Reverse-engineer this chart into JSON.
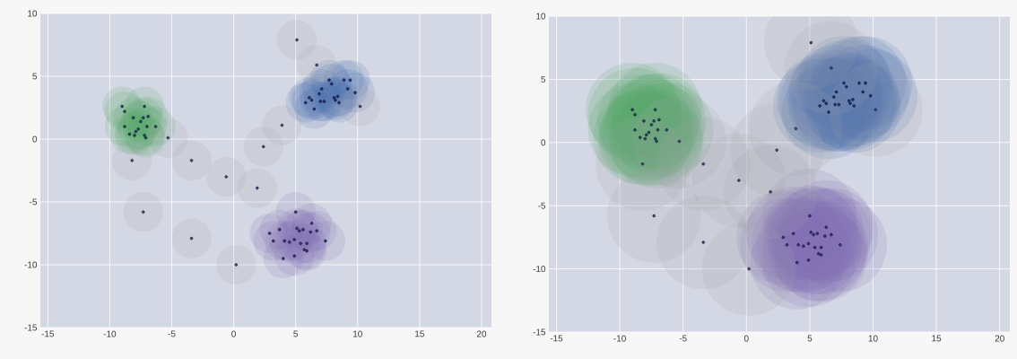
{
  "chart_data": [
    {
      "type": "bubble",
      "xlim": [
        -15.6,
        20.8
      ],
      "ylim": [
        -15,
        10
      ],
      "xticks": [
        -15,
        -10,
        -5,
        0,
        5,
        10,
        15,
        20
      ],
      "yticks": [
        -15,
        -10,
        -5,
        0,
        5,
        10
      ],
      "grid": true,
      "series": [
        {
          "color": "#55a868",
          "x": [
            -9.0,
            -8.8,
            -7.2,
            -8.1,
            -7.3,
            -6.9,
            -7.5,
            -8.8,
            -7.0,
            -6.3,
            -7.7,
            -7.9,
            -8.4,
            -8.0,
            -7.2,
            -7.1
          ],
          "values": [
            2.6,
            2.2,
            2.6,
            1.7,
            1.7,
            1.8,
            1.4,
            1.0,
            1.0,
            1.0,
            0.8,
            0.6,
            0.4,
            0.3,
            0.3,
            0.1
          ],
          "sizes": [
            1,
            1,
            1,
            1,
            1,
            1,
            1,
            1,
            1,
            1,
            1,
            1,
            1,
            1,
            1,
            1
          ]
        },
        {
          "color": "#4c72b0",
          "x": [
            7.7,
            7.9,
            8.9,
            9.4,
            7.1,
            6.9,
            9.2,
            9.8,
            6.1,
            6.3,
            5.8,
            7.0,
            7.3,
            8.1,
            8.4,
            8.2,
            8.5,
            6.5
          ],
          "values": [
            4.7,
            4.4,
            4.7,
            4.7,
            4.0,
            3.6,
            4.0,
            3.7,
            3.3,
            3.1,
            2.9,
            3.0,
            3.0,
            3.3,
            3.4,
            3.1,
            2.9,
            2.4
          ],
          "sizes": [
            1,
            1,
            1,
            1,
            1,
            1,
            1,
            1,
            1,
            1,
            1,
            1,
            1,
            1,
            1,
            1,
            1,
            1
          ]
        },
        {
          "color": "#8172b2",
          "x": [
            5.0,
            6.3,
            5.1,
            5.6,
            5.3,
            6.7,
            6.2,
            2.9,
            3.7,
            3.2,
            4.1,
            4.5,
            4.9,
            5.4,
            5.9,
            7.4,
            5.7,
            5.9,
            4.0,
            4.9
          ],
          "values": [
            -5.8,
            -6.7,
            -7.1,
            -7.2,
            -7.3,
            -7.3,
            -7.4,
            -7.5,
            -7.2,
            -8.1,
            -8.1,
            -8.2,
            -8.0,
            -8.3,
            -8.3,
            -8.1,
            -8.8,
            -8.9,
            -9.5,
            -9.3
          ],
          "sizes": [
            1,
            1,
            1,
            1,
            1,
            1,
            1,
            1,
            1,
            1,
            1,
            1,
            1,
            1,
            1,
            1,
            1,
            1,
            1,
            1
          ]
        },
        {
          "color": "#a0a0a8",
          "x": [
            5.1,
            6.7,
            10.2,
            3.9,
            2.4,
            -5.3,
            -8.2,
            -3.4,
            -0.6,
            1.9,
            -7.3,
            -3.4,
            0.2
          ],
          "values": [
            7.9,
            5.9,
            2.6,
            1.1,
            -0.6,
            0.1,
            -1.7,
            -1.7,
            -3.0,
            -3.9,
            -5.8,
            -7.9,
            -10.0
          ],
          "sizes": [
            1,
            1,
            1,
            1,
            1,
            1,
            1,
            1,
            1,
            1,
            1,
            1,
            1
          ]
        }
      ]
    },
    {
      "type": "bubble",
      "xlim": [
        -15.6,
        20.8
      ],
      "ylim": [
        -15,
        10
      ],
      "xticks": [
        -15,
        -10,
        -5,
        0,
        5,
        10,
        15,
        20
      ],
      "yticks": [
        -15,
        -10,
        -5,
        0,
        5,
        10
      ],
      "grid": true,
      "series": [
        {
          "color": "#55a868",
          "x": [
            -9.0,
            -8.8,
            -7.2,
            -8.1,
            -7.3,
            -6.9,
            -7.5,
            -8.8,
            -7.0,
            -6.3,
            -7.7,
            -7.9,
            -8.4,
            -8.0,
            -7.2,
            -7.1
          ],
          "values": [
            2.6,
            2.2,
            2.6,
            1.7,
            1.7,
            1.8,
            1.4,
            1.0,
            1.0,
            1.0,
            0.8,
            0.6,
            0.4,
            0.3,
            0.3,
            0.1
          ],
          "sizes": [
            1,
            1,
            1,
            1,
            1,
            1,
            1,
            1,
            1,
            1,
            1,
            1,
            1,
            1,
            1,
            1
          ]
        },
        {
          "color": "#4c72b0",
          "x": [
            7.7,
            7.9,
            8.9,
            9.4,
            7.1,
            6.9,
            9.2,
            9.8,
            6.1,
            6.3,
            5.8,
            7.0,
            7.3,
            8.1,
            8.4,
            8.2,
            8.5,
            6.5
          ],
          "values": [
            4.7,
            4.4,
            4.7,
            4.7,
            4.0,
            3.6,
            4.0,
            3.7,
            3.3,
            3.1,
            2.9,
            3.0,
            3.0,
            3.3,
            3.4,
            3.1,
            2.9,
            2.4
          ],
          "sizes": [
            1,
            1,
            1,
            1,
            1,
            1,
            1,
            1,
            1,
            1,
            1,
            1,
            1,
            1,
            1,
            1,
            1,
            1
          ]
        },
        {
          "color": "#8172b2",
          "x": [
            5.0,
            6.3,
            5.1,
            5.6,
            5.3,
            6.7,
            6.2,
            2.9,
            3.7,
            3.2,
            4.1,
            4.5,
            4.9,
            5.4,
            5.9,
            7.4,
            5.7,
            5.9,
            4.0,
            4.9
          ],
          "values": [
            -5.8,
            -6.7,
            -7.1,
            -7.2,
            -7.3,
            -7.3,
            -7.4,
            -7.5,
            -7.2,
            -8.1,
            -8.1,
            -8.2,
            -8.0,
            -8.3,
            -8.3,
            -8.1,
            -8.8,
            -8.9,
            -9.5,
            -9.3
          ],
          "sizes": [
            1,
            1,
            1,
            1,
            1,
            1,
            1,
            1,
            1,
            1,
            1,
            1,
            1,
            1,
            1,
            1,
            1,
            1,
            1,
            1
          ]
        },
        {
          "color": "#a0a0a8",
          "x": [
            5.1,
            6.7,
            10.2,
            3.9,
            2.4,
            -5.3,
            -8.2,
            -3.4,
            -0.6,
            1.9,
            -7.3,
            -3.4,
            0.2
          ],
          "values": [
            7.9,
            5.9,
            2.6,
            1.1,
            -0.6,
            0.1,
            -1.7,
            -1.7,
            -3.0,
            -3.9,
            -5.8,
            -7.9,
            -10.0
          ],
          "sizes": [
            1,
            1,
            1,
            1,
            1,
            1,
            1,
            1,
            1,
            1,
            1,
            1,
            1
          ]
        }
      ]
    }
  ]
}
